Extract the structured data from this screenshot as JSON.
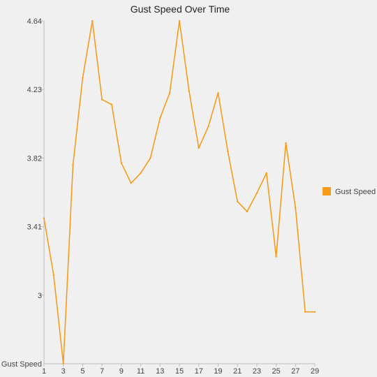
{
  "chart_data": {
    "type": "line",
    "title": "Gust Speed Over Time",
    "xlabel": "",
    "ylabel": "Gust Speed",
    "x": [
      1,
      2,
      3,
      4,
      5,
      6,
      7,
      8,
      9,
      10,
      11,
      12,
      13,
      14,
      15,
      16,
      17,
      18,
      19,
      20,
      21,
      22,
      23,
      24,
      25,
      26,
      27,
      28,
      29
    ],
    "x_ticks": [
      "1",
      "3",
      "5",
      "7",
      "9",
      "11",
      "13",
      "15",
      "17",
      "19",
      "21",
      "23",
      "25",
      "27",
      "29"
    ],
    "y_ticks": [
      "3",
      "3.41",
      "3.82",
      "4.23",
      "4.64"
    ],
    "ylim": [
      2.59,
      4.64
    ],
    "series": [
      {
        "name": "Gust Speed",
        "color": "#f59c1a",
        "values": [
          3.46,
          3.12,
          2.59,
          3.78,
          4.3,
          4.64,
          4.17,
          4.14,
          3.79,
          3.67,
          3.73,
          3.82,
          4.06,
          4.21,
          4.64,
          4.22,
          3.88,
          4.01,
          4.21,
          3.86,
          3.56,
          3.5,
          3.61,
          3.73,
          3.23,
          3.91,
          3.52,
          2.9,
          2.9
        ]
      }
    ],
    "legend": {
      "position": "right"
    },
    "grid": false
  }
}
